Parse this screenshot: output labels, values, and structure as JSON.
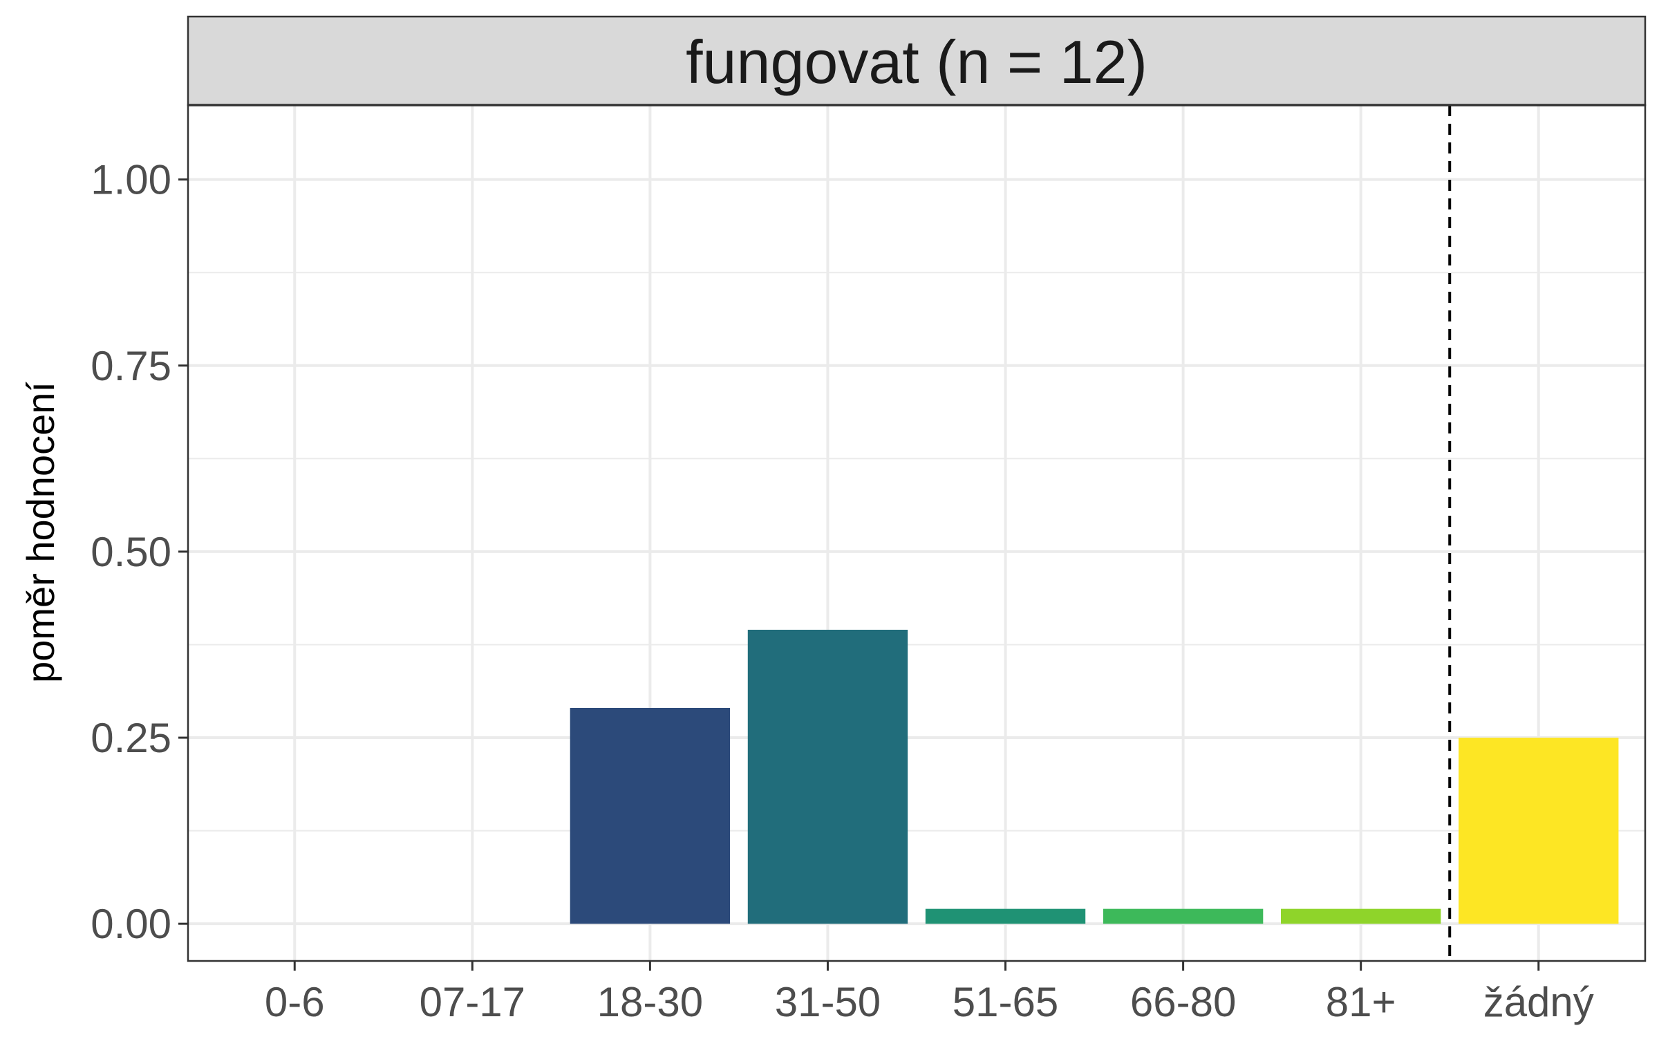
{
  "chart_data": {
    "type": "bar",
    "title": "fungovat (n = 12)",
    "xlabel": "",
    "ylabel": "poměr hodnocení",
    "categories": [
      "0-6",
      "07-17",
      "18-30",
      "31-50",
      "51-65",
      "66-80",
      "81+",
      "žádný"
    ],
    "values": [
      0,
      0,
      0.29,
      0.395,
      0.02,
      0.02,
      0.02,
      0.25
    ],
    "colors": [
      "#440154",
      "#46327e",
      "#2c4a7a",
      "#216d7b",
      "#1f9274",
      "#3db95a",
      "#8fd42a",
      "#fde624"
    ],
    "ylim": [
      -0.05,
      1.1
    ],
    "yticks": [
      "0.00",
      "0.25",
      "0.50",
      "0.75",
      "1.00"
    ],
    "grid": true,
    "reference_line": {
      "style": "dashed",
      "between": [
        "81+",
        "žádný"
      ]
    }
  }
}
